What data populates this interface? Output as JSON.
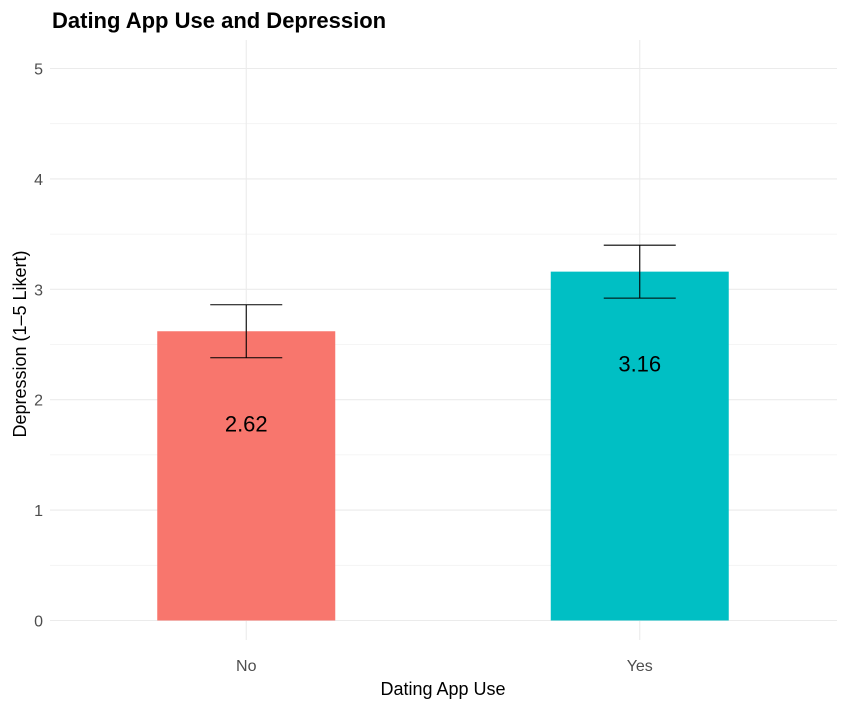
{
  "chart_data": {
    "type": "bar",
    "title": "Dating App Use and Depression",
    "xlabel": "Dating App Use",
    "ylabel": "Depression (1–5 Likert)",
    "categories": [
      "No",
      "Yes"
    ],
    "values": [
      2.62,
      3.16
    ],
    "value_labels": [
      "2.62",
      "3.16"
    ],
    "error_low": [
      2.38,
      2.92
    ],
    "error_high": [
      2.86,
      3.4
    ],
    "ylim": [
      0,
      5
    ],
    "yticks": [
      "0",
      "1",
      "2",
      "3",
      "4",
      "5"
    ],
    "colors": [
      "#F8766D",
      "#00BFC4"
    ],
    "grid": true,
    "legend": "none"
  }
}
